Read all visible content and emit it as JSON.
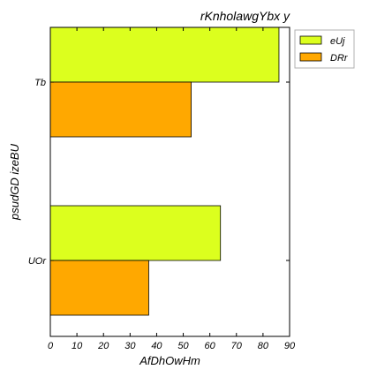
{
  "chart_data": {
    "type": "bar",
    "orientation": "horizontal",
    "title": "rKnholawgYbx y",
    "xlabel": "AfDhOwHm",
    "ylabel": "psudGD izeBU",
    "categories": [
      "UOr",
      "Tb"
    ],
    "series": [
      {
        "name": "eUj",
        "color": "#dcff1e",
        "values": [
          64,
          86
        ]
      },
      {
        "name": "DRr",
        "color": "#ffa800",
        "values": [
          37,
          53
        ]
      }
    ],
    "xlim": [
      0,
      90
    ],
    "xticks": [
      0,
      10,
      20,
      30,
      40,
      50,
      60,
      70,
      80,
      90
    ],
    "grid": false,
    "legend_position": "outside-top-right"
  }
}
